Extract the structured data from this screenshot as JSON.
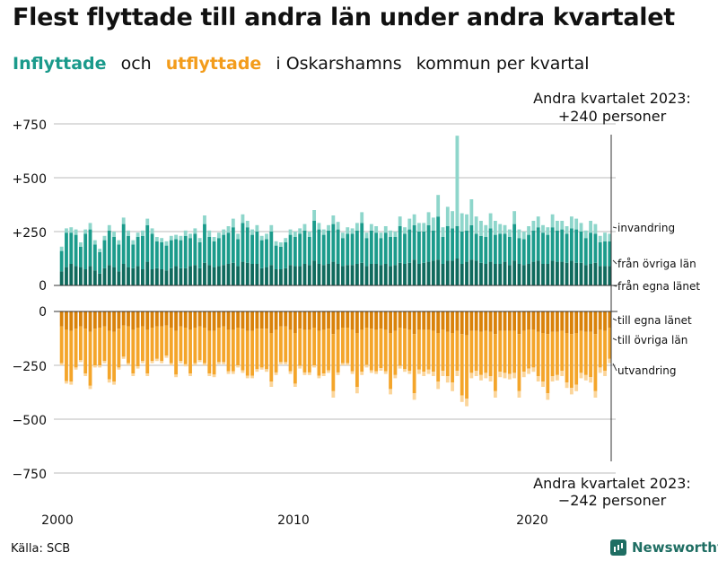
{
  "title": "Flest flyttade till andra län under andra kvartalet",
  "subtitle": {
    "part1": "Inflyttade",
    "part2": "och",
    "part3": "utflyttade",
    "part4": "i Oskarshamns",
    "part5": "kommun",
    "part6": "per",
    "part7": "kvartal"
  },
  "source": "Källa: SCB",
  "brand": "Newsworthy",
  "colors": {
    "in_dark": "#0f6a5d",
    "in_mid": "#1b9b8b",
    "in_light": "#8ed6cb",
    "out_dark": "#d9820a",
    "out_mid": "#f4a52a",
    "out_light": "#fbd59a",
    "axis": "#333333",
    "grid": "#bbbbbb"
  },
  "chart_data": {
    "type": "bar",
    "stacked": true,
    "title": "Flest flyttade till andra län under andra kvartalet",
    "x_start": 2000,
    "quarters_per_year": 4,
    "x_ticks": [
      "2000",
      "2010",
      "2020"
    ],
    "y_ticks": [
      "+750",
      "+500",
      "+250",
      "0",
      "0",
      "−250",
      "−500",
      "−750"
    ],
    "ylim_in": [
      0,
      750
    ],
    "ylim_out": [
      -750,
      0
    ],
    "series_labels": {
      "invandring": "invandring",
      "fran_ovriga_lan": "från övriga län",
      "fran_egna_lanet": "från egna länet",
      "till_egna_lanet": "till egna länet",
      "till_ovriga_lan": "till övriga län",
      "utvandring": "utvandring"
    },
    "in_totals": [
      180,
      265,
      270,
      260,
      200,
      260,
      290,
      210,
      170,
      230,
      280,
      250,
      210,
      315,
      255,
      210,
      245,
      255,
      310,
      265,
      225,
      220,
      205,
      230,
      235,
      230,
      255,
      240,
      265,
      220,
      325,
      255,
      225,
      245,
      260,
      275,
      310,
      240,
      330,
      300,
      260,
      280,
      230,
      240,
      280,
      205,
      200,
      220,
      260,
      250,
      265,
      285,
      250,
      350,
      290,
      260,
      280,
      325,
      295,
      245,
      270,
      265,
      290,
      340,
      245,
      285,
      275,
      245,
      275,
      255,
      250,
      320,
      270,
      310,
      330,
      290,
      290,
      340,
      315,
      420,
      270,
      365,
      345,
      695,
      335,
      330,
      400,
      320,
      300,
      280,
      335,
      300,
      285,
      280,
      260,
      345,
      260,
      250,
      275,
      300,
      320,
      280,
      270,
      330,
      300,
      300,
      275,
      320,
      310,
      290,
      255,
      300,
      285,
      230,
      245,
      240
    ],
    "in_fran_egna": [
      65,
      85,
      100,
      90,
      85,
      75,
      90,
      70,
      55,
      80,
      95,
      85,
      65,
      100,
      85,
      80,
      90,
      75,
      110,
      75,
      80,
      75,
      70,
      80,
      90,
      80,
      80,
      90,
      95,
      80,
      105,
      95,
      85,
      90,
      95,
      100,
      105,
      90,
      110,
      105,
      100,
      100,
      80,
      85,
      95,
      75,
      75,
      80,
      95,
      90,
      90,
      100,
      95,
      115,
      100,
      95,
      100,
      110,
      100,
      90,
      95,
      95,
      100,
      105,
      90,
      100,
      100,
      95,
      100,
      90,
      95,
      105,
      100,
      105,
      120,
      100,
      105,
      110,
      115,
      120,
      100,
      115,
      115,
      125,
      100,
      110,
      120,
      115,
      105,
      100,
      110,
      100,
      100,
      110,
      95,
      115,
      100,
      95,
      100,
      110,
      115,
      100,
      100,
      115,
      110,
      110,
      105,
      115,
      105,
      105,
      95,
      100,
      105,
      90,
      90,
      90
    ],
    "in_invandring": [
      20,
      20,
      25,
      25,
      20,
      20,
      30,
      20,
      15,
      20,
      25,
      25,
      20,
      30,
      25,
      20,
      20,
      25,
      30,
      25,
      20,
      20,
      20,
      20,
      20,
      20,
      25,
      20,
      25,
      20,
      40,
      30,
      20,
      25,
      25,
      30,
      40,
      25,
      40,
      30,
      25,
      30,
      20,
      25,
      30,
      20,
      20,
      20,
      25,
      25,
      25,
      30,
      25,
      50,
      30,
      25,
      25,
      40,
      35,
      25,
      30,
      25,
      35,
      50,
      25,
      30,
      30,
      25,
      30,
      30,
      25,
      45,
      30,
      50,
      50,
      40,
      40,
      60,
      60,
      100,
      45,
      90,
      80,
      420,
      85,
      75,
      120,
      80,
      70,
      55,
      70,
      65,
      45,
      40,
      35,
      60,
      40,
      35,
      40,
      45,
      50,
      35,
      35,
      60,
      45,
      40,
      35,
      55,
      50,
      40,
      35,
      55,
      45,
      30,
      40,
      35
    ],
    "out_totals": [
      -250,
      -335,
      -340,
      -270,
      -235,
      -300,
      -360,
      -260,
      -260,
      -240,
      -330,
      -340,
      -270,
      -220,
      -250,
      -300,
      -265,
      -240,
      -300,
      -240,
      -230,
      -240,
      -215,
      -250,
      -305,
      -240,
      -255,
      -300,
      -250,
      -235,
      -250,
      -300,
      -305,
      -245,
      -245,
      -290,
      -290,
      -260,
      -285,
      -310,
      -310,
      -280,
      -270,
      -280,
      -350,
      -295,
      -245,
      -245,
      -290,
      -350,
      -265,
      -295,
      -295,
      -260,
      -310,
      -300,
      -285,
      -400,
      -295,
      -250,
      -250,
      -290,
      -380,
      -295,
      -260,
      -285,
      -290,
      -275,
      -290,
      -385,
      -310,
      -265,
      -280,
      -290,
      -410,
      -290,
      -300,
      -290,
      -300,
      -360,
      -300,
      -330,
      -370,
      -300,
      -420,
      -440,
      -310,
      -300,
      -320,
      -310,
      -325,
      -400,
      -305,
      -310,
      -315,
      -310,
      -400,
      -305,
      -290,
      -280,
      -325,
      -350,
      -410,
      -325,
      -320,
      -300,
      -355,
      -385,
      -370,
      -310,
      -320,
      -330,
      -400,
      -285,
      -300,
      -240
    ],
    "out_till_egna": [
      -70,
      -85,
      -90,
      -80,
      -70,
      -80,
      -95,
      -80,
      -75,
      -70,
      -90,
      -95,
      -80,
      -65,
      -70,
      -85,
      -75,
      -70,
      -85,
      -75,
      -70,
      -70,
      -65,
      -75,
      -90,
      -70,
      -75,
      -85,
      -75,
      -70,
      -75,
      -90,
      -90,
      -75,
      -70,
      -85,
      -85,
      -75,
      -80,
      -90,
      -90,
      -80,
      -80,
      -80,
      -100,
      -85,
      -70,
      -70,
      -85,
      -100,
      -80,
      -85,
      -85,
      -75,
      -90,
      -85,
      -80,
      -105,
      -85,
      -75,
      -75,
      -85,
      -100,
      -85,
      -75,
      -80,
      -85,
      -80,
      -85,
      -100,
      -90,
      -75,
      -80,
      -85,
      -105,
      -85,
      -85,
      -85,
      -90,
      -100,
      -85,
      -95,
      -100,
      -90,
      -105,
      -110,
      -90,
      -90,
      -95,
      -90,
      -95,
      -105,
      -90,
      -90,
      -90,
      -90,
      -105,
      -90,
      -85,
      -85,
      -95,
      -100,
      -105,
      -95,
      -95,
      -90,
      -100,
      -105,
      -100,
      -90,
      -95,
      -95,
      -105,
      -85,
      -90,
      -75
    ],
    "out_utvandring": [
      -10,
      -12,
      -15,
      -10,
      -10,
      -12,
      -15,
      -10,
      -10,
      -10,
      -15,
      -15,
      -10,
      -10,
      -10,
      -12,
      -10,
      -10,
      -12,
      -10,
      -10,
      -10,
      -10,
      -10,
      -12,
      -10,
      -10,
      -12,
      -10,
      -10,
      -10,
      -12,
      -12,
      -10,
      -10,
      -12,
      -12,
      -10,
      -12,
      -12,
      -12,
      -12,
      -10,
      -12,
      -25,
      -12,
      -10,
      -10,
      -12,
      -15,
      -12,
      -12,
      -12,
      -10,
      -12,
      -12,
      -12,
      -30,
      -12,
      -10,
      -10,
      -12,
      -30,
      -15,
      -12,
      -12,
      -12,
      -12,
      -12,
      -25,
      -15,
      -12,
      -12,
      -15,
      -30,
      -20,
      -20,
      -20,
      -20,
      -35,
      -25,
      -30,
      -40,
      -25,
      -30,
      -35,
      -25,
      -25,
      -25,
      -25,
      -25,
      -30,
      -25,
      -25,
      -25,
      -25,
      -30,
      -25,
      -25,
      -20,
      -25,
      -25,
      -30,
      -25,
      -25,
      -25,
      -25,
      -30,
      -30,
      -25,
      -25,
      -25,
      -30,
      -25,
      -25,
      -20
    ]
  },
  "annotations": {
    "top_line1": "Andra kvartalet 2023:",
    "top_line2": "+240 personer",
    "bottom_line1": "Andra kvartalet 2023:",
    "bottom_line2": "−242 personer"
  }
}
